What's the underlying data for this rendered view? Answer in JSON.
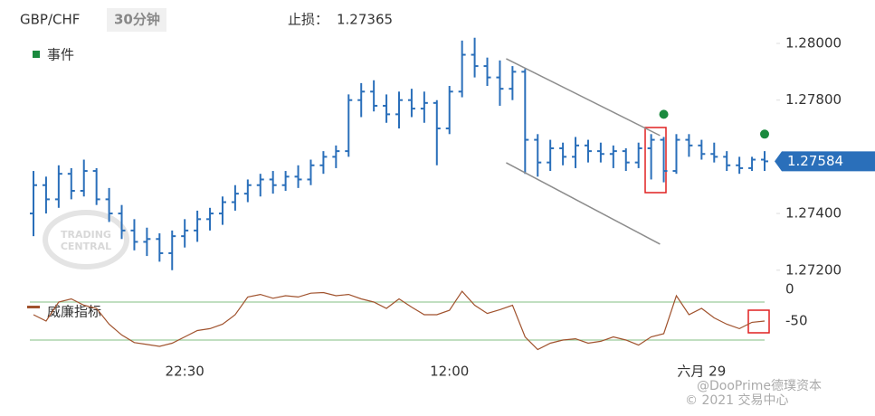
{
  "header": {
    "symbol": "GBP/CHF",
    "interval": "30分钟",
    "stop_label": "止损：",
    "stop_value": 1.27365
  },
  "watermark": {
    "logo": [
      "TRADING",
      "CENTRAL"
    ],
    "brand": "@DooPrime德璞资本",
    "copyright": "© 2021 交易中心"
  },
  "chart_data": [
    {
      "type": "ohlc",
      "legend": "事件",
      "color": "#2a6fba",
      "event_color": "#1a8a3e",
      "trend_color": "#8c8c8c",
      "categories": [
        null,
        null,
        null,
        null,
        null,
        null,
        null,
        null,
        null,
        null,
        null,
        null,
        "22:30",
        null,
        null,
        null,
        null,
        null,
        null,
        null,
        null,
        null,
        null,
        null,
        null,
        null,
        null,
        null,
        null,
        null,
        null,
        null,
        null,
        "12:00",
        null,
        null,
        null,
        null,
        null,
        null,
        null,
        null,
        null,
        null,
        null,
        null,
        null,
        null,
        null,
        null,
        null,
        null,
        null,
        "六月 29",
        null,
        null,
        null,
        null,
        null
      ],
      "open": [
        1.274,
        1.275,
        1.2745,
        1.2754,
        1.2748,
        1.2755,
        1.2745,
        1.274,
        1.2734,
        1.273,
        1.2731,
        1.2726,
        1.2732,
        1.2734,
        1.2738,
        1.274,
        1.2744,
        1.2747,
        1.275,
        1.2752,
        1.275,
        1.2753,
        1.2752,
        1.2757,
        1.276,
        1.2762,
        1.278,
        1.2783,
        1.2778,
        1.2775,
        1.278,
        1.2777,
        1.2779,
        1.277,
        1.2783,
        1.2796,
        1.2792,
        1.2788,
        1.2784,
        1.279,
        1.2766,
        1.2758,
        1.2763,
        1.276,
        1.2764,
        1.2762,
        1.2761,
        1.2762,
        1.2758,
        1.2763,
        1.2766,
        1.2755,
        1.2766,
        1.2764,
        1.2761,
        1.276,
        1.2757,
        1.2756,
        1.2759
      ],
      "high": [
        1.2755,
        1.2753,
        1.2757,
        1.2756,
        1.2759,
        1.2756,
        1.2749,
        1.2743,
        1.2738,
        1.2735,
        1.2733,
        1.2734,
        1.2738,
        1.2741,
        1.2742,
        1.2746,
        1.275,
        1.2752,
        1.2754,
        1.2755,
        1.2755,
        1.2757,
        1.2759,
        1.2762,
        1.2764,
        1.2782,
        1.2786,
        1.2787,
        1.2782,
        1.2783,
        1.2784,
        1.2783,
        1.278,
        1.2785,
        1.2801,
        1.2802,
        1.2795,
        1.2794,
        1.2792,
        1.2791,
        1.2768,
        1.2766,
        1.2765,
        1.2767,
        1.2766,
        1.2765,
        1.2764,
        1.2763,
        1.2765,
        1.2768,
        1.2767,
        1.2768,
        1.2768,
        1.2766,
        1.2765,
        1.2762,
        1.276,
        1.276,
        1.2762
      ],
      "low": [
        1.2732,
        1.274,
        1.2742,
        1.2745,
        1.2746,
        1.2743,
        1.2737,
        1.2731,
        1.2727,
        1.2725,
        1.2723,
        1.272,
        1.2728,
        1.273,
        1.2734,
        1.2736,
        1.2741,
        1.2744,
        1.2746,
        1.2747,
        1.2748,
        1.2749,
        1.275,
        1.2754,
        1.2756,
        1.276,
        1.2774,
        1.2776,
        1.2772,
        1.277,
        1.2774,
        1.2772,
        1.2757,
        1.2768,
        1.2781,
        1.2788,
        1.2785,
        1.2778,
        1.278,
        1.2754,
        1.2753,
        1.2755,
        1.2757,
        1.2756,
        1.2758,
        1.2758,
        1.2756,
        1.2755,
        1.2756,
        1.2752,
        1.2751,
        1.2754,
        1.276,
        1.2759,
        1.2758,
        1.2755,
        1.2754,
        1.2755,
        1.2755
      ],
      "close": [
        1.275,
        1.2745,
        1.2754,
        1.2748,
        1.2755,
        1.2745,
        1.274,
        1.2734,
        1.273,
        1.2731,
        1.2726,
        1.2732,
        1.2734,
        1.2738,
        1.274,
        1.2744,
        1.2747,
        1.275,
        1.2752,
        1.275,
        1.2753,
        1.2752,
        1.2757,
        1.276,
        1.2762,
        1.278,
        1.2783,
        1.2778,
        1.2775,
        1.278,
        1.2777,
        1.2779,
        1.277,
        1.2783,
        1.2796,
        1.2792,
        1.2788,
        1.2784,
        1.279,
        1.2766,
        1.2758,
        1.2763,
        1.276,
        1.2764,
        1.2762,
        1.2761,
        1.2762,
        1.2758,
        1.2763,
        1.2766,
        1.2755,
        1.2766,
        1.2764,
        1.2761,
        1.276,
        1.2757,
        1.2756,
        1.2759,
        1.27584
      ],
      "events": [
        {
          "at": 50,
          "value": 1.2775
        },
        {
          "at": 58,
          "value": 1.2768
        }
      ],
      "trendlines": [
        [
          {
            "at": 37.5,
            "value": 1.27946
          },
          {
            "at": 49.7,
            "value": 1.27675
          }
        ],
        [
          {
            "at": 37.5,
            "value": 1.27579
          },
          {
            "at": 49.7,
            "value": 1.27292
          }
        ]
      ],
      "ylim": [
        1.2716,
        1.2803
      ],
      "yticks": [
        {
          "value": 1.28,
          "label": "1.28000"
        },
        {
          "value": 1.278,
          "label": "1.27800"
        },
        {
          "value": 1.274,
          "label": "1.27400"
        },
        {
          "value": 1.272,
          "label": "1.27200"
        }
      ]
    },
    {
      "type": "line",
      "name": "威廉指标",
      "color": "#a0522d",
      "level_color": "#9ccc9c",
      "values": [
        -40,
        -50,
        -20,
        -15,
        -25,
        -30,
        -55,
        -72,
        -84,
        -87,
        -90,
        -85,
        -75,
        -65,
        -62,
        -55,
        -40,
        -12,
        -8,
        -14,
        -10,
        -12,
        -6,
        -5,
        -10,
        -8,
        -15,
        -20,
        -30,
        -15,
        -28,
        -40,
        -40,
        -33,
        -3,
        -25,
        -38,
        -32,
        -25,
        -75,
        -95,
        -85,
        -80,
        -78,
        -85,
        -82,
        -75,
        -80,
        -88,
        -75,
        -70,
        -10,
        -40,
        -30,
        -45,
        -55,
        -62,
        -52,
        -50
      ],
      "levels": [
        -20,
        -80
      ],
      "ylim": [
        -100,
        0
      ],
      "yticks": [
        0,
        -50
      ]
    }
  ]
}
